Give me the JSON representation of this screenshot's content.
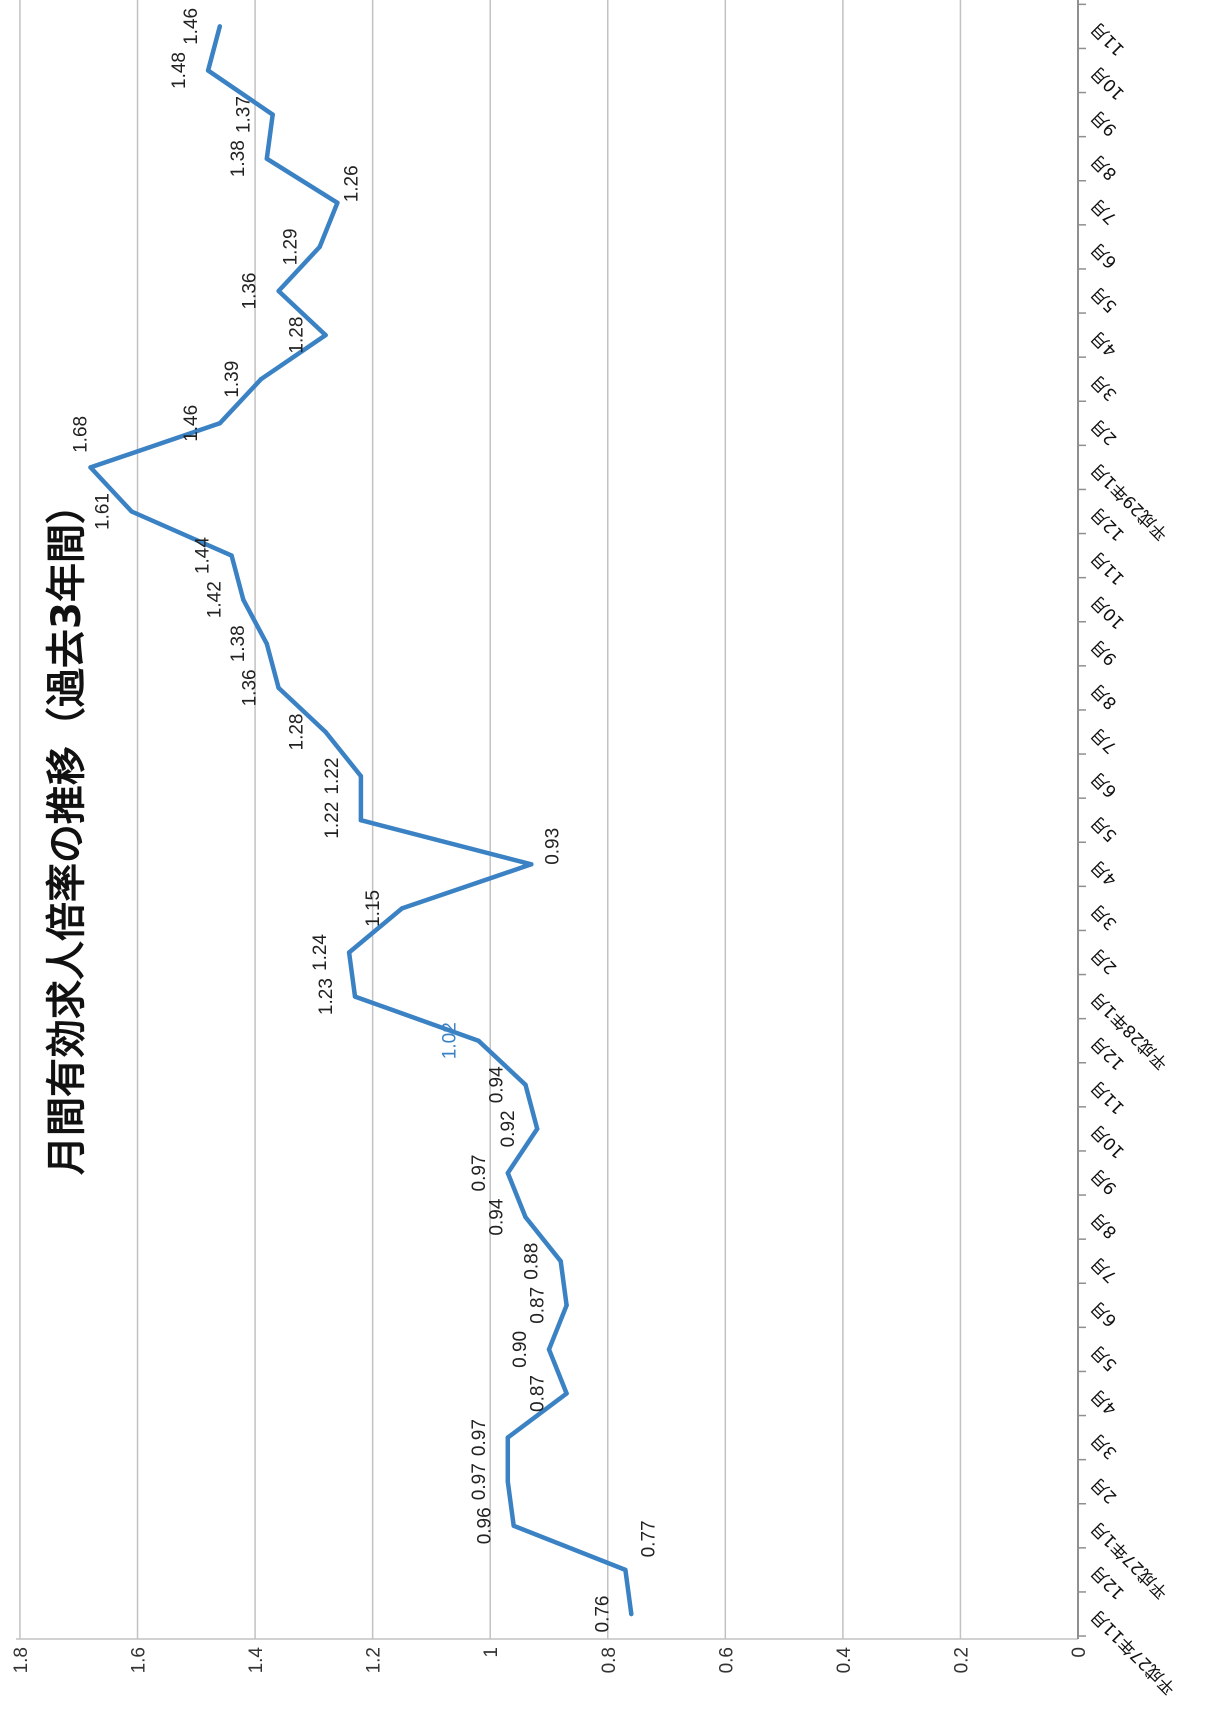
{
  "chart_data": {
    "type": "line",
    "title": "月間有効求人倍率の推移（過去3年間）",
    "categories": [
      "平成27年11月",
      "12月",
      "平成27年1月",
      "2月",
      "3月",
      "4月",
      "5月",
      "6月",
      "7月",
      "8月",
      "9月",
      "10月",
      "11月",
      "12月",
      "平成28年1月",
      "2月",
      "3月",
      "4月",
      "5月",
      "6月",
      "7月",
      "8月",
      "9月",
      "10月",
      "11月",
      "12月",
      "平成29年1月",
      "2月",
      "3月",
      "4月",
      "5月",
      "6月",
      "7月",
      "8月",
      "9月",
      "10月",
      "11月"
    ],
    "series": [
      {
        "values": [
          0.76,
          0.77,
          0.96,
          0.97,
          0.97,
          0.87,
          0.9,
          0.87,
          0.88,
          0.94,
          0.97,
          0.92,
          0.94,
          1.02,
          1.23,
          1.24,
          1.15,
          0.93,
          1.22,
          1.22,
          1.28,
          1.36,
          1.38,
          1.42,
          1.44,
          1.61,
          1.68,
          1.46,
          1.39,
          1.28,
          1.36,
          1.29,
          1.26,
          1.38,
          1.37,
          1.48,
          1.46
        ],
        "color": "#3b82c4",
        "data_labels": true,
        "label_color": "#222222",
        "highlight_labels": [
          {
            "index": 13,
            "color": "#3b82c4"
          }
        ]
      }
    ],
    "ylim": [
      0,
      1.8
    ],
    "yticks": [
      0,
      0.2,
      0.4,
      0.6,
      0.8,
      1,
      1.2,
      1.4,
      1.6,
      1.8
    ],
    "grid": true,
    "legend": "none"
  }
}
